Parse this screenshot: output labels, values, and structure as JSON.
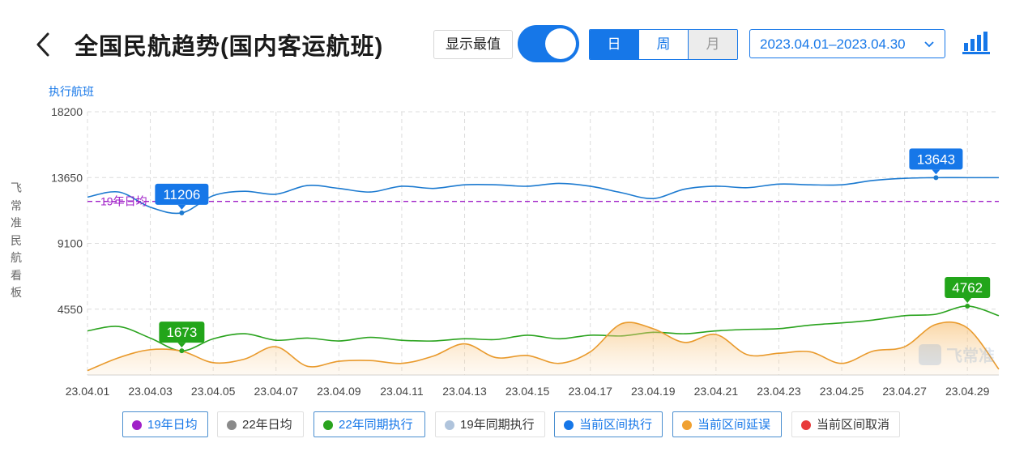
{
  "header": {
    "title": "全国民航趋势(国内客运航班)",
    "extreme_button": "显示最值",
    "tabs": [
      {
        "label": "日",
        "state": "active"
      },
      {
        "label": "周",
        "state": "normal"
      },
      {
        "label": "月",
        "state": "disabled"
      }
    ],
    "date_range": "2023.04.01–2023.04.30",
    "accent_color": "#1677e8"
  },
  "side_label": [
    "飞",
    "常",
    "准",
    "民",
    "航",
    "看",
    "板"
  ],
  "watermark": "飞常准",
  "chart_data": {
    "type": "line",
    "ylabel": "执行航班",
    "yticks": [
      18200,
      13650,
      9100,
      4550
    ],
    "ylim": [
      0,
      18200
    ],
    "xticks": [
      "23.04.01",
      "23.04.03",
      "23.04.05",
      "23.04.07",
      "23.04.09",
      "23.04.11",
      "23.04.13",
      "23.04.15",
      "23.04.17",
      "23.04.19",
      "23.04.21",
      "23.04.23",
      "23.04.25",
      "23.04.27",
      "23.04.29"
    ],
    "x_first_date": "23.04.01",
    "x_last_date": "23.04.30",
    "grid": true,
    "reference_line": {
      "name": "19年日均",
      "value": 12000,
      "color": "#a020c8"
    },
    "series": [
      {
        "name": "当前区间执行",
        "color": "#1c7ad0",
        "values": [
          12300,
          12650,
          11600,
          11206,
          12400,
          12700,
          12500,
          13100,
          12900,
          12650,
          13050,
          12900,
          13150,
          13150,
          13050,
          13250,
          13050,
          12600,
          12200,
          12850,
          13050,
          12950,
          13200,
          13150,
          13150,
          13450,
          13600,
          13643,
          13643,
          13643
        ],
        "max": {
          "day": 28,
          "value": 13643
        },
        "min": {
          "day": 4,
          "value": 11206
        }
      },
      {
        "name": "22年同期执行",
        "color": "#2aa31e",
        "values": [
          3050,
          3350,
          2550,
          1673,
          2500,
          2850,
          2400,
          2550,
          2350,
          2600,
          2400,
          2350,
          2500,
          2450,
          2750,
          2500,
          2750,
          2700,
          2950,
          2850,
          3050,
          3150,
          3200,
          3450,
          3600,
          3800,
          4100,
          4200,
          4762,
          4100
        ],
        "max": {
          "day": 29,
          "value": 4762
        },
        "min": {
          "day": 4,
          "value": 1673
        }
      },
      {
        "name": "当前区间延误",
        "color": "#e99a2c",
        "area": true,
        "values": [
          300,
          1200,
          1750,
          1650,
          850,
          1100,
          1950,
          600,
          950,
          1000,
          800,
          1300,
          2150,
          1200,
          1350,
          800,
          1600,
          3550,
          3200,
          2250,
          2800,
          1400,
          1500,
          1600,
          800,
          1650,
          1950,
          3500,
          3250,
          400
        ]
      }
    ],
    "legend": [
      {
        "name": "19年日均",
        "color": "#a020c8",
        "active": true
      },
      {
        "name": "22年日均",
        "color": "#8a8a8a",
        "active": false
      },
      {
        "name": "22年同期执行",
        "color": "#2aa31e",
        "active": true
      },
      {
        "name": "19年同期执行",
        "color": "#b0c4dc",
        "active": false
      },
      {
        "name": "当前区间执行",
        "color": "#1677e8",
        "active": true
      },
      {
        "name": "当前区间延误",
        "color": "#f0a030",
        "active": true
      },
      {
        "name": "当前区间取消",
        "color": "#e83a3a",
        "active": false
      }
    ]
  }
}
